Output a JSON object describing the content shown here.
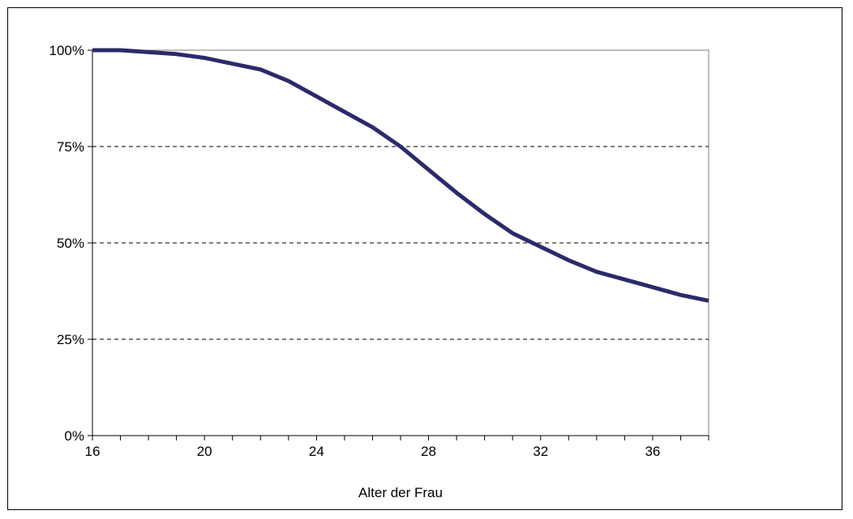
{
  "chart_data": {
    "type": "line",
    "title": "",
    "xlabel": "Alter der Frau",
    "ylabel": "",
    "xlim": [
      16,
      38
    ],
    "ylim": [
      0,
      1
    ],
    "x_ticks": [
      16,
      20,
      24,
      28,
      32,
      36
    ],
    "x_tick_labels": [
      "16",
      "20",
      "24",
      "28",
      "32",
      "36"
    ],
    "y_ticks": [
      0,
      0.25,
      0.5,
      0.75,
      1.0
    ],
    "y_tick_labels": [
      "0%",
      "25%",
      "50%",
      "75%",
      "100%"
    ],
    "y_grid": "dashed",
    "legend": "none",
    "line_color": "#2b2a6b",
    "series": [
      {
        "x": [
          16,
          17,
          18,
          19,
          20,
          21,
          22,
          23,
          24,
          25,
          26,
          27,
          28,
          29,
          30,
          31,
          32,
          33,
          34,
          35,
          36,
          37,
          38
        ],
        "values": [
          1.0,
          1.0,
          0.995,
          0.99,
          0.98,
          0.965,
          0.95,
          0.92,
          0.88,
          0.84,
          0.8,
          0.75,
          0.69,
          0.63,
          0.575,
          0.525,
          0.49,
          0.455,
          0.425,
          0.405,
          0.385,
          0.365,
          0.35
        ]
      }
    ]
  }
}
